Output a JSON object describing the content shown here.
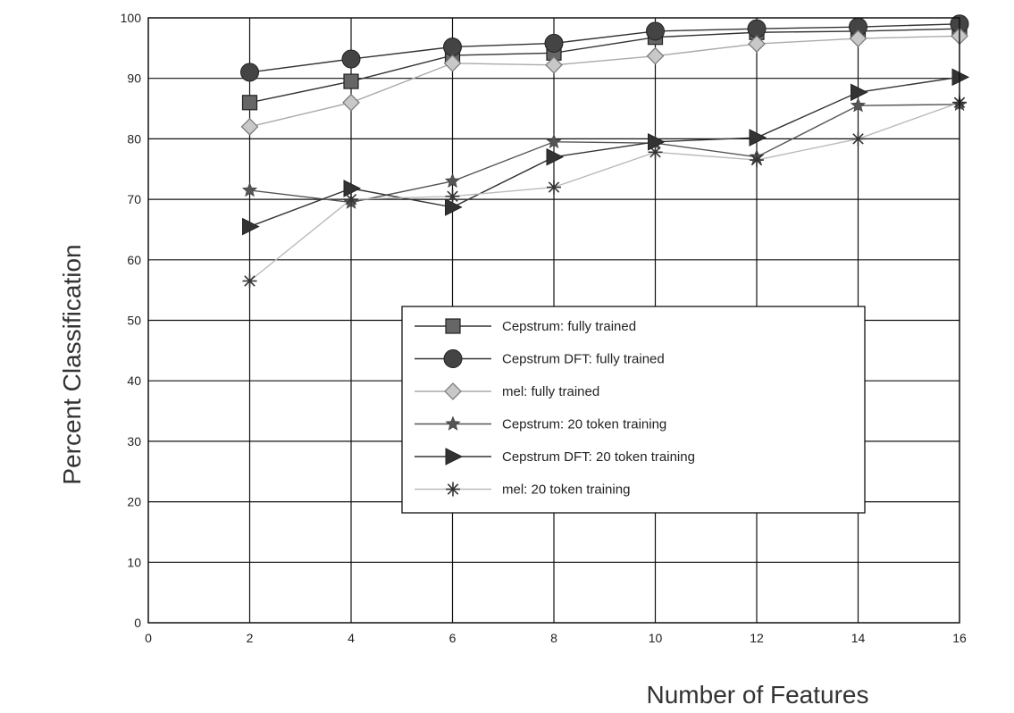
{
  "chart_data": {
    "type": "line",
    "xlabel": "Number of Features",
    "ylabel": "Percent Classification",
    "xlim": [
      0,
      16
    ],
    "ylim": [
      0,
      100
    ],
    "xticks": [
      0,
      2,
      4,
      6,
      8,
      10,
      12,
      14,
      16
    ],
    "yticks": [
      0,
      10,
      20,
      30,
      40,
      50,
      60,
      70,
      80,
      90,
      100
    ],
    "grid": true,
    "legend_position": "center-right",
    "x": [
      2,
      4,
      6,
      8,
      10,
      12,
      14,
      16
    ],
    "series": [
      {
        "name": "Cepstrum: fully trained",
        "marker": "square",
        "line_color": "#333333",
        "marker_fill": "#666666",
        "values": [
          86.0,
          89.5,
          93.8,
          94.2,
          96.8,
          97.6,
          97.8,
          98.2
        ]
      },
      {
        "name": "Cepstrum DFT: fully trained",
        "marker": "circle",
        "line_color": "#333333",
        "marker_fill": "#444444",
        "values": [
          91.0,
          93.2,
          95.2,
          95.8,
          97.8,
          98.2,
          98.5,
          99.0
        ]
      },
      {
        "name": "mel: fully trained",
        "marker": "diamond",
        "line_color": "#aaaaaa",
        "marker_fill": "#c8c8c8",
        "values": [
          82.0,
          86.0,
          92.5,
          92.2,
          93.7,
          95.7,
          96.6,
          97.0
        ]
      },
      {
        "name": "Cepstrum: 20 token training",
        "marker": "star",
        "line_color": "#555555",
        "marker_fill": "#555555",
        "values": [
          71.5,
          69.5,
          73.0,
          79.5,
          79.3,
          77.0,
          85.5,
          85.7
        ]
      },
      {
        "name": "Cepstrum DFT: 20 token training",
        "marker": "triangle-right",
        "line_color": "#333333",
        "marker_fill": "#333333",
        "values": [
          65.5,
          71.8,
          68.7,
          77.0,
          79.5,
          80.2,
          87.7,
          90.2
        ]
      },
      {
        "name": "mel: 20 token training",
        "marker": "asterisk",
        "line_color": "#bbbbbb",
        "marker_fill": "#333333",
        "values": [
          56.5,
          70.0,
          70.5,
          72.0,
          77.8,
          76.5,
          80.0,
          86.0
        ]
      }
    ]
  }
}
